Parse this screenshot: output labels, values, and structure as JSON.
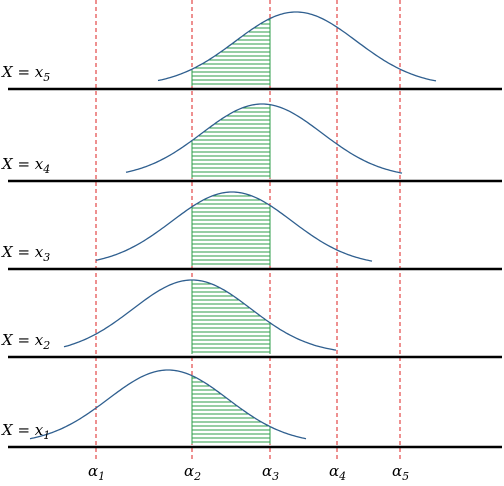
{
  "rows": [
    {
      "label_main": "X = x",
      "label_sub": "5",
      "peak": 0.4,
      "lo": 0.0,
      "hi": 1.0
    },
    {
      "label_main": "X = x",
      "label_sub": "4",
      "peak": 0.35,
      "lo": 0.0,
      "hi": 1.0
    },
    {
      "label_main": "X = x",
      "label_sub": "3",
      "peak": 0.25,
      "lo": 0.0,
      "hi": 1.0
    },
    {
      "label_main": "X = x",
      "label_sub": "2",
      "peak": 0.15,
      "lo": 0.0,
      "hi": 1.0
    },
    {
      "label_main": "X = x",
      "label_sub": "1",
      "peak": 0.05,
      "lo": 0.0,
      "hi": 1.0
    }
  ],
  "thresholds": [
    {
      "main": "α",
      "sub": "1"
    },
    {
      "main": "α",
      "sub": "2"
    },
    {
      "main": "α",
      "sub": "3"
    },
    {
      "main": "α",
      "sub": "4"
    },
    {
      "main": "α",
      "sub": "5"
    }
  ],
  "shaded_interval": {
    "from": "α2",
    "to": "α3"
  },
  "colors": {
    "curve": "#2f5f8f",
    "hatch": "#2e9e4a",
    "threshold_line": "#dd2222",
    "baseline": "#000000"
  }
}
